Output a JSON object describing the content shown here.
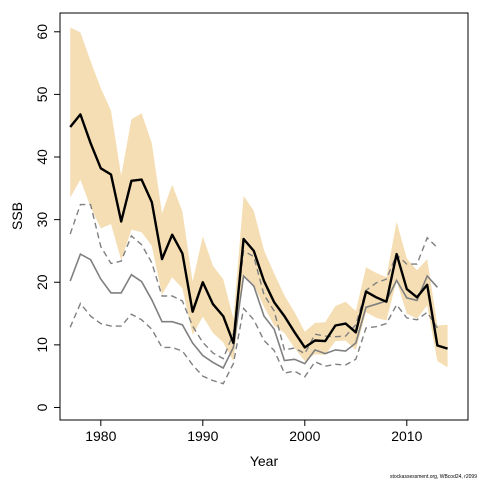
{
  "chart_data": {
    "type": "line",
    "xlabel": "Year",
    "ylabel": "SSB",
    "xlim": [
      1976,
      2016
    ],
    "ylim": [
      -2,
      63
    ],
    "x_ticks": [
      1980,
      1990,
      2000,
      2010
    ],
    "y_ticks": [
      0,
      10,
      20,
      30,
      40,
      50,
      60
    ],
    "grid": false,
    "legend": "none",
    "footnote": "stockassessment.org, WBcod24, r2099",
    "x": [
      1977,
      1978,
      1979,
      1980,
      1981,
      1982,
      1983,
      1984,
      1985,
      1986,
      1987,
      1988,
      1989,
      1990,
      1991,
      1992,
      1993,
      1994,
      1995,
      1996,
      1997,
      1998,
      1999,
      2000,
      2001,
      2002,
      2003,
      2004,
      2005,
      2006,
      2007,
      2008,
      2009,
      2010,
      2011,
      2012,
      2013,
      2014
    ],
    "ssb": [
      44.8,
      46.8,
      42.2,
      38.2,
      37.2,
      29.7,
      36.2,
      36.4,
      32.8,
      23.7,
      27.6,
      24.6,
      15.3,
      20.0,
      16.5,
      14.6,
      10.3,
      26.9,
      25.0,
      20.2,
      16.8,
      14.6,
      12.0,
      9.6,
      10.7,
      10.6,
      13.1,
      13.4,
      12.0,
      18.5,
      17.6,
      16.9,
      24.5,
      18.9,
      17.6,
      19.6,
      9.9,
      9.4
    ],
    "ssb_upper": [
      60.7,
      59.9,
      55.3,
      51.0,
      47.4,
      37.0,
      46.0,
      47.0,
      42.2,
      31.0,
      35.6,
      31.3,
      20.1,
      27.3,
      22.6,
      20.5,
      14.2,
      33.8,
      31.4,
      25.1,
      21.4,
      17.9,
      15.2,
      12.1,
      13.5,
      13.6,
      16.2,
      16.9,
      15.4,
      22.4,
      21.5,
      20.8,
      29.7,
      23.8,
      21.9,
      23.7,
      13.1,
      13.2
    ],
    "ssb_lower": [
      33.5,
      36.4,
      32.0,
      28.6,
      29.3,
      23.5,
      28.4,
      28.0,
      25.8,
      18.0,
      20.8,
      19.0,
      11.6,
      14.5,
      11.9,
      10.4,
      7.4,
      21.2,
      19.6,
      16.1,
      13.1,
      11.9,
      9.5,
      7.4,
      8.5,
      8.4,
      10.6,
      10.7,
      9.2,
      15.2,
      14.3,
      13.9,
      20.2,
      15.0,
      14.2,
      16.3,
      7.4,
      6.4
    ],
    "comparison_line": {
      "x": [
        1977,
        1978,
        1979,
        1980,
        1981,
        1982,
        1983,
        1984,
        1985,
        1986,
        1987,
        1988,
        1989,
        1990,
        1991,
        1992,
        1993,
        1994,
        1995,
        1996,
        1997,
        1998,
        1999,
        2000,
        2001,
        2002,
        2003,
        2004,
        2005,
        2006,
        2007,
        2008,
        2009,
        2010,
        2011,
        2012,
        2013
      ],
      "mid": [
        20.2,
        24.5,
        23.6,
        20.5,
        18.3,
        18.3,
        21.2,
        20.1,
        17.2,
        13.7,
        13.7,
        13.2,
        10.3,
        8.3,
        7.2,
        6.3,
        9.6,
        21.0,
        19.4,
        14.6,
        12.5,
        7.5,
        7.7,
        7.0,
        9.2,
        8.6,
        9.2,
        9.0,
        10.3,
        16.0,
        16.5,
        17.0,
        20.3,
        17.5,
        17.1,
        21.0,
        19.2
      ],
      "upper": [
        27.7,
        32.4,
        32.4,
        25.7,
        23.0,
        23.4,
        27.4,
        26.0,
        23.1,
        17.8,
        17.8,
        17.0,
        13.0,
        10.4,
        8.7,
        7.8,
        11.8,
        25.0,
        24.1,
        18.0,
        15.4,
        9.2,
        9.5,
        8.6,
        11.7,
        11.4,
        11.3,
        11.4,
        13.2,
        18.7,
        19.9,
        20.5,
        24.4,
        22.9,
        22.9,
        27.1,
        25.5
      ],
      "lower": [
        12.8,
        16.6,
        14.6,
        13.4,
        13.0,
        13.0,
        14.9,
        14.0,
        12.5,
        9.6,
        9.6,
        9.0,
        6.8,
        5.0,
        4.3,
        3.8,
        7.0,
        15.8,
        14.0,
        10.7,
        9.1,
        5.5,
        5.8,
        4.9,
        7.3,
        6.6,
        6.9,
        6.8,
        7.7,
        12.7,
        12.9,
        13.4,
        16.4,
        14.3,
        14.0,
        15.2,
        12.7
      ]
    },
    "colors": {
      "band": "#f5deb3",
      "ssb_line": "#000000",
      "comparison": "#808080"
    }
  }
}
